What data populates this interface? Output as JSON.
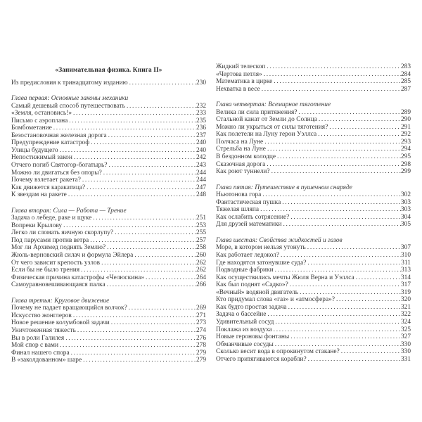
{
  "book_title": "«Занимательная физика. Книга II»",
  "columns": [
    {
      "header": "«Занимательная физика. Книга II»",
      "sections": [
        {
          "chapter": null,
          "entries": [
            {
              "title": "Из предисловия к тринадцатому изданию",
              "page": "230"
            }
          ]
        },
        {
          "chapter": "Глава первая: Основные законы механики",
          "entries": [
            {
              "title": "Самый дешевый способ путешествовать",
              "page": "232"
            },
            {
              "title": "«Земля, остановись!»",
              "page": "233"
            },
            {
              "title": "Письмо с аэроплана",
              "page": "235"
            },
            {
              "title": "Бомбометание",
              "page": "236"
            },
            {
              "title": "Безостановочная железная дорога",
              "page": "237"
            },
            {
              "title": "Предупреждение катастроф",
              "page": "240"
            },
            {
              "title": "Улицы будущего",
              "page": "240"
            },
            {
              "title": "Непостижимый закон",
              "page": "242"
            },
            {
              "title": "Отчего погиб Святогор-богатырь?",
              "page": "243"
            },
            {
              "title": "Можно ли двигаться без опоры?",
              "page": "244"
            },
            {
              "title": "Почему взлетает ракета?",
              "page": "244"
            },
            {
              "title": "Как движется каракатица?",
              "page": "247"
            },
            {
              "title": "К звездам на ракете",
              "page": "248"
            }
          ]
        },
        {
          "chapter": "Глава вторая: Сила — Работа — Трение",
          "entries": [
            {
              "title": "Задача о лебеде, раке и щуке",
              "page": "251"
            },
            {
              "title": "Вопреки Крылову",
              "page": "253"
            },
            {
              "title": "Легко ли сломать яичную скорлупу?",
              "page": "255"
            },
            {
              "title": "Под парусами против ветра",
              "page": "257"
            },
            {
              "title": "Мог ли Архимед поднять Землю?",
              "page": "258"
            },
            {
              "title": "Жюль-верновский силач и формула Эйлера",
              "page": "260"
            },
            {
              "title": "От чего зависит крепость узлов",
              "page": "262"
            },
            {
              "title": "Если бы не было трения",
              "page": "262"
            },
            {
              "title": "Физическая причина катастрофы «Челюскина»",
              "page": "264"
            },
            {
              "title": "Самоуравновешивающаяся палка",
              "page": "266"
            }
          ]
        },
        {
          "chapter": "Глава третья: Круговое движение",
          "entries": [
            {
              "title": "Почему не падает вращающийся волчок?",
              "page": "269"
            },
            {
              "title": "Искусство жонглеров",
              "page": "271"
            },
            {
              "title": "Новое решение колумбовой задачи",
              "page": "273"
            },
            {
              "title": "Уничтоженная тяжесть",
              "page": "274"
            },
            {
              "title": "Вы в роли Галилея",
              "page": "276"
            },
            {
              "title": "Мой спор с вами",
              "page": "278"
            },
            {
              "title": "Финал нашего спора",
              "page": "279"
            },
            {
              "title": "В «заколдованном» шаре",
              "page": "279"
            }
          ]
        }
      ]
    },
    {
      "header": null,
      "sections": [
        {
          "chapter": null,
          "entries": [
            {
              "title": "Жидкий телескоп",
              "page": "283"
            },
            {
              "title": "«Чертова петля»",
              "page": "284"
            },
            {
              "title": "Математика в цирке",
              "page": "285"
            },
            {
              "title": "Нехватка в весе",
              "page": "287"
            }
          ]
        },
        {
          "chapter": "Глава четвертая: Всемирное тяготение",
          "entries": [
            {
              "title": "Велика ли сила притяжения?",
              "page": "289"
            },
            {
              "title": "Стальной канат от Земли до Солнца",
              "page": "290"
            },
            {
              "title": "Можно ли укрыться от силы тяготения?",
              "page": "291"
            },
            {
              "title": "Как полетели на Луну герои Уэллса",
              "page": "292"
            },
            {
              "title": "Полчаса на Луне",
              "page": "293"
            },
            {
              "title": "Стрельба на Луне",
              "page": "294"
            },
            {
              "title": "В бездонном колодце",
              "page": "295"
            },
            {
              "title": "Сказочная дорога",
              "page": "298"
            },
            {
              "title": "Как роют туннели?",
              "page": "299"
            }
          ]
        },
        {
          "chapter": "Глава пятая: Путешествие в пушечном снаряде",
          "entries": [
            {
              "title": "Ньютонова гора",
              "page": "302"
            },
            {
              "title": "Фантастическая пушка",
              "page": "303"
            },
            {
              "title": "Тяжелая шляпа",
              "page": "303"
            },
            {
              "title": "Как ослабить сотрясение?",
              "page": "304"
            },
            {
              "title": "Для друзей математики",
              "page": "305"
            }
          ]
        },
        {
          "chapter": "Глава шестая: Свойства жидкостей и газов",
          "entries": [
            {
              "title": "Море, в котором нельзя утонуть",
              "page": "307"
            },
            {
              "title": "Как работает ледокол?",
              "page": "310"
            },
            {
              "title": "Где находятся затонувшие суда?",
              "page": "311"
            },
            {
              "title": "Подводные фабрики",
              "page": "313"
            },
            {
              "title": "Как осуществились мечты Жюля Верна и Уэллса",
              "page": "314"
            },
            {
              "title": "Как был поднят «Садко»?",
              "page": "317"
            },
            {
              "title": "«Вечный» водяной двигатель",
              "page": "319"
            },
            {
              "title": "Кто придумал слова «газ» и «атмосфера»?",
              "page": "320"
            },
            {
              "title": "Как будто простая задача",
              "page": "321"
            },
            {
              "title": "Задача о бассейне",
              "page": "322"
            },
            {
              "title": "Удивительный сосуд",
              "page": "324"
            },
            {
              "title": "Поклажа из воздуха",
              "page": "325"
            },
            {
              "title": "Новые героновы фонтаны",
              "page": "327"
            },
            {
              "title": "Обманчивые сосуды",
              "page": "330"
            },
            {
              "title": "Сколько весит вода в опрокинутом стакане?",
              "page": "330"
            },
            {
              "title": "Отчего притягиваются корабли?",
              "page": "331"
            }
          ]
        }
      ]
    }
  ]
}
